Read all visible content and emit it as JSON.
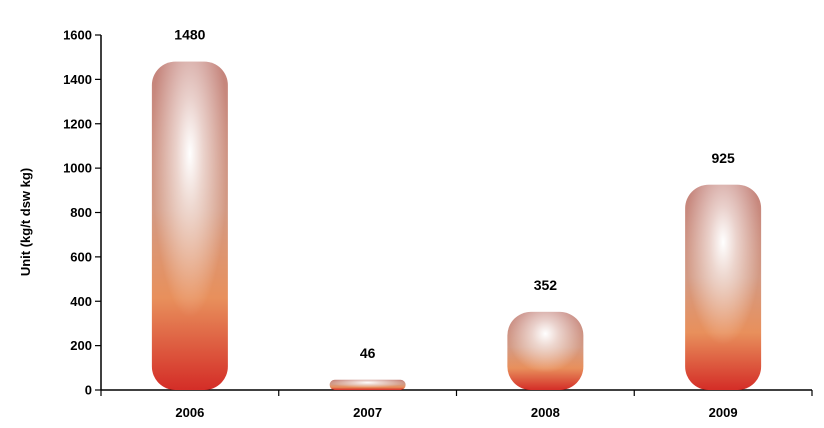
{
  "chart_data": {
    "type": "bar",
    "title": "",
    "xlabel": "",
    "ylabel": "Unit (kg/t dsw kg)",
    "categories": [
      "2006",
      "2007",
      "2008",
      "2009"
    ],
    "values": [
      1480,
      46,
      352,
      925
    ],
    "data_labels": [
      "1480",
      "46",
      "352",
      "925"
    ],
    "ylim": [
      0,
      1600
    ],
    "yticks": [
      0,
      200,
      400,
      600,
      800,
      1000,
      1200,
      1400,
      1600
    ],
    "grid": false,
    "legend": "none",
    "bar_colors": {
      "bottom": "#d8312b",
      "middle": "#e8915e",
      "top": "#c9887f",
      "highlight": "#ffffff"
    },
    "axis_color": "#000000"
  }
}
